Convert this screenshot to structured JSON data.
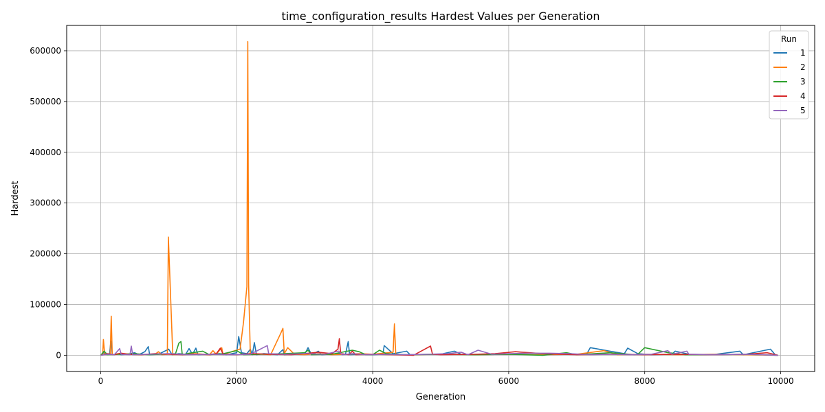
{
  "chart_data": {
    "type": "line",
    "title": "time_configuration_results Hardest Values per Generation",
    "xlabel": "Generation",
    "ylabel": "Hardest",
    "xlim": [
      -500,
      10500
    ],
    "ylim": [
      -32000,
      650000
    ],
    "xticks": [
      0,
      2000,
      4000,
      6000,
      8000,
      10000
    ],
    "yticks": [
      0,
      100000,
      200000,
      300000,
      400000,
      500000,
      600000
    ],
    "grid": true,
    "legend": {
      "title": "Run",
      "position": "top-right"
    },
    "series": [
      {
        "name": "1",
        "color": "#1f77b4",
        "points": [
          [
            0,
            0
          ],
          [
            40,
            5000
          ],
          [
            80,
            1000
          ],
          [
            130,
            2000
          ],
          [
            150,
            28000
          ],
          [
            170,
            1000
          ],
          [
            250,
            3000
          ],
          [
            300,
            1000
          ],
          [
            400,
            2000
          ],
          [
            500,
            5000
          ],
          [
            560,
            1000
          ],
          [
            650,
            7000
          ],
          [
            700,
            17000
          ],
          [
            720,
            1000
          ],
          [
            850,
            2000
          ],
          [
            1000,
            12000
          ],
          [
            1050,
            1000
          ],
          [
            1150,
            3000
          ],
          [
            1250,
            2000
          ],
          [
            1300,
            13000
          ],
          [
            1350,
            2000
          ],
          [
            1400,
            14000
          ],
          [
            1430,
            1000
          ],
          [
            1600,
            2000
          ],
          [
            1750,
            3000
          ],
          [
            1850,
            1000
          ],
          [
            2000,
            5000
          ],
          [
            2030,
            37000
          ],
          [
            2070,
            5000
          ],
          [
            2150,
            3000
          ],
          [
            2200,
            12000
          ],
          [
            2230,
            1000
          ],
          [
            2260,
            25000
          ],
          [
            2290,
            1000
          ],
          [
            2400,
            3000
          ],
          [
            2600,
            1000
          ],
          [
            2680,
            11000
          ],
          [
            2700,
            1000
          ],
          [
            2900,
            3000
          ],
          [
            3000,
            2000
          ],
          [
            3050,
            15000
          ],
          [
            3100,
            1000
          ],
          [
            3200,
            8000
          ],
          [
            3250,
            1000
          ],
          [
            3500,
            3000
          ],
          [
            3600,
            2000
          ],
          [
            3640,
            27000
          ],
          [
            3660,
            1000
          ],
          [
            3800,
            2000
          ],
          [
            4000,
            1000
          ],
          [
            4150,
            2000
          ],
          [
            4170,
            19000
          ],
          [
            4300,
            3000
          ],
          [
            4500,
            8000
          ],
          [
            4550,
            1000
          ],
          [
            5000,
            2000
          ],
          [
            5200,
            8000
          ],
          [
            5300,
            2000
          ],
          [
            5500,
            1000
          ],
          [
            6000,
            2000
          ],
          [
            6500,
            1000
          ],
          [
            7000,
            2000
          ],
          [
            7150,
            3000
          ],
          [
            7200,
            15000
          ],
          [
            7700,
            3000
          ],
          [
            7750,
            14000
          ],
          [
            7900,
            3000
          ],
          [
            8100,
            1000
          ],
          [
            8400,
            2000
          ],
          [
            8450,
            8000
          ],
          [
            8650,
            2000
          ],
          [
            9000,
            1000
          ],
          [
            9400,
            8000
          ],
          [
            9450,
            1000
          ],
          [
            9850,
            12000
          ],
          [
            9920,
            1000
          ],
          [
            9960,
            0
          ]
        ]
      },
      {
        "name": "2",
        "color": "#ff7f0e",
        "points": [
          [
            0,
            0
          ],
          [
            30,
            2000
          ],
          [
            40,
            31000
          ],
          [
            60,
            1000
          ],
          [
            140,
            2000
          ],
          [
            155,
            77000
          ],
          [
            170,
            1000
          ],
          [
            300,
            4000
          ],
          [
            500,
            1000
          ],
          [
            800,
            2000
          ],
          [
            850,
            7000
          ],
          [
            900,
            1000
          ],
          [
            980,
            2000
          ],
          [
            995,
            233000
          ],
          [
            1060,
            1000
          ],
          [
            1200,
            2000
          ],
          [
            1400,
            3000
          ],
          [
            1600,
            1000
          ],
          [
            1650,
            9000
          ],
          [
            1700,
            2000
          ],
          [
            1780,
            15000
          ],
          [
            1800,
            1000
          ],
          [
            1950,
            8000
          ],
          [
            2050,
            12000
          ],
          [
            2100,
            65000
          ],
          [
            2150,
            135000
          ],
          [
            2163,
            618000
          ],
          [
            2175,
            140000
          ],
          [
            2200,
            3000
          ],
          [
            2400,
            2000
          ],
          [
            2500,
            1000
          ],
          [
            2650,
            44000
          ],
          [
            2680,
            53000
          ],
          [
            2700,
            3000
          ],
          [
            2750,
            15000
          ],
          [
            2850,
            2000
          ],
          [
            3000,
            1000
          ],
          [
            3200,
            3000
          ],
          [
            3400,
            1000
          ],
          [
            3600,
            2000
          ],
          [
            3800,
            3000
          ],
          [
            4000,
            2000
          ],
          [
            4300,
            6000
          ],
          [
            4320,
            62000
          ],
          [
            4340,
            1000
          ],
          [
            4600,
            1000
          ],
          [
            5000,
            2000
          ],
          [
            5500,
            1000
          ],
          [
            6000,
            2000
          ],
          [
            6500,
            1000
          ],
          [
            7000,
            2000
          ],
          [
            7400,
            9000
          ],
          [
            7600,
            1000
          ],
          [
            8000,
            2000
          ],
          [
            8500,
            1000
          ],
          [
            9000,
            2000
          ],
          [
            9500,
            1000
          ],
          [
            9960,
            0
          ]
        ]
      },
      {
        "name": "3",
        "color": "#2ca02c",
        "points": [
          [
            0,
            0
          ],
          [
            50,
            8000
          ],
          [
            100,
            1000
          ],
          [
            300,
            2000
          ],
          [
            500,
            3000
          ],
          [
            700,
            1000
          ],
          [
            900,
            2000
          ],
          [
            1100,
            3000
          ],
          [
            1150,
            24000
          ],
          [
            1180,
            27000
          ],
          [
            1200,
            1000
          ],
          [
            1300,
            4000
          ],
          [
            1500,
            8000
          ],
          [
            1600,
            1000
          ],
          [
            1800,
            3000
          ],
          [
            2000,
            9000
          ],
          [
            2100,
            1000
          ],
          [
            2400,
            2000
          ],
          [
            2700,
            3000
          ],
          [
            3000,
            5000
          ],
          [
            3050,
            10000
          ],
          [
            3100,
            1000
          ],
          [
            3400,
            2000
          ],
          [
            3700,
            10000
          ],
          [
            3800,
            7000
          ],
          [
            3900,
            1000
          ],
          [
            4000,
            1000
          ],
          [
            4100,
            10000
          ],
          [
            4200,
            3000
          ],
          [
            4500,
            1000
          ],
          [
            5000,
            2000
          ],
          [
            5500,
            1000
          ],
          [
            6000,
            2000
          ],
          [
            6500,
            0
          ],
          [
            6850,
            5000
          ],
          [
            7000,
            1000
          ],
          [
            7500,
            5000
          ],
          [
            7850,
            1000
          ],
          [
            7900,
            2000
          ],
          [
            8000,
            15000
          ],
          [
            8350,
            5000
          ],
          [
            8600,
            1000
          ],
          [
            9000,
            1000
          ],
          [
            9500,
            2000
          ],
          [
            9960,
            0
          ]
        ]
      },
      {
        "name": "4",
        "color": "#d62728",
        "points": [
          [
            0,
            0
          ],
          [
            100,
            3000
          ],
          [
            200,
            1000
          ],
          [
            300,
            4000
          ],
          [
            400,
            2000
          ],
          [
            600,
            1000
          ],
          [
            800,
            3000
          ],
          [
            1000,
            2000
          ],
          [
            1200,
            1000
          ],
          [
            1400,
            2000
          ],
          [
            1600,
            1000
          ],
          [
            1700,
            3000
          ],
          [
            1760,
            14000
          ],
          [
            1800,
            2000
          ],
          [
            2000,
            1000
          ],
          [
            2200,
            3000
          ],
          [
            2500,
            2000
          ],
          [
            2800,
            1000
          ],
          [
            3000,
            3000
          ],
          [
            3200,
            6000
          ],
          [
            3400,
            3000
          ],
          [
            3490,
            12000
          ],
          [
            3510,
            33000
          ],
          [
            3530,
            3000
          ],
          [
            3650,
            1000
          ],
          [
            3700,
            8000
          ],
          [
            3750,
            1000
          ],
          [
            4000,
            2000
          ],
          [
            4300,
            1000
          ],
          [
            4600,
            0
          ],
          [
            4850,
            18000
          ],
          [
            4880,
            2000
          ],
          [
            5000,
            1000
          ],
          [
            5500,
            2000
          ],
          [
            5800,
            3000
          ],
          [
            6100,
            7000
          ],
          [
            6500,
            3000
          ],
          [
            7000,
            1000
          ],
          [
            7500,
            2000
          ],
          [
            8000,
            1000
          ],
          [
            8500,
            2000
          ],
          [
            9000,
            1000
          ],
          [
            9500,
            2000
          ],
          [
            9800,
            5000
          ],
          [
            9960,
            0
          ]
        ]
      },
      {
        "name": "5",
        "color": "#9467bd",
        "points": [
          [
            0,
            0
          ],
          [
            100,
            2000
          ],
          [
            200,
            1000
          ],
          [
            280,
            13000
          ],
          [
            300,
            2000
          ],
          [
            430,
            1000
          ],
          [
            450,
            18000
          ],
          [
            470,
            1000
          ],
          [
            700,
            2000
          ],
          [
            1000,
            3000
          ],
          [
            1300,
            1000
          ],
          [
            1600,
            2000
          ],
          [
            1900,
            1000
          ],
          [
            2200,
            2000
          ],
          [
            2450,
            19000
          ],
          [
            2470,
            3000
          ],
          [
            2700,
            2000
          ],
          [
            3000,
            3000
          ],
          [
            3300,
            2000
          ],
          [
            3500,
            8000
          ],
          [
            3550,
            1000
          ],
          [
            3700,
            3000
          ],
          [
            3900,
            1000
          ],
          [
            4200,
            2000
          ],
          [
            4500,
            1000
          ],
          [
            4800,
            2000
          ],
          [
            5100,
            3000
          ],
          [
            5300,
            6000
          ],
          [
            5400,
            1000
          ],
          [
            5550,
            10000
          ],
          [
            5750,
            2000
          ],
          [
            6000,
            3000
          ],
          [
            6300,
            4000
          ],
          [
            6600,
            4000
          ],
          [
            6900,
            3000
          ],
          [
            7200,
            1000
          ],
          [
            7500,
            2000
          ],
          [
            7800,
            1000
          ],
          [
            8100,
            2000
          ],
          [
            8340,
            9000
          ],
          [
            8400,
            2000
          ],
          [
            8620,
            8000
          ],
          [
            8650,
            2000
          ],
          [
            9000,
            1000
          ],
          [
            9500,
            2000
          ],
          [
            9960,
            0
          ]
        ]
      }
    ]
  }
}
